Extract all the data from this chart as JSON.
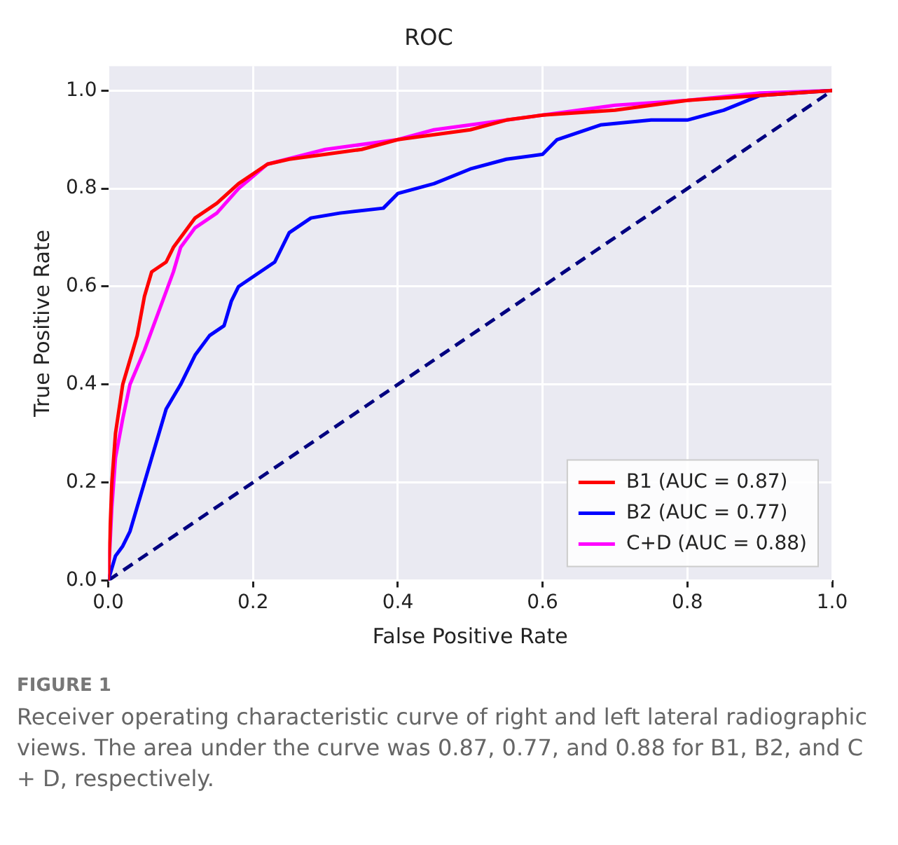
{
  "chart_data": {
    "type": "line",
    "title": "ROC",
    "xlabel": "False Positive Rate",
    "ylabel": "True Positive Rate",
    "annotations": [
      "FIGURE 1",
      "Receiver operating characteristic curve of right and left lateral radiographic views. The area under the curve was 0.87, 0.77, and 0.88 for B1, B2, and C + D, respectively."
    ],
    "xlim": [
      0,
      1
    ],
    "ylim": [
      0,
      1.05
    ],
    "xticks": [
      {
        "value": 0,
        "label": "0.0"
      },
      0.2,
      0.4,
      0.6,
      0.8,
      {
        "value": 1,
        "label": "1.0"
      }
    ],
    "yticks": [
      {
        "value": 0,
        "label": "0.0"
      },
      0.2,
      0.4,
      0.6,
      0.8,
      {
        "value": 1,
        "label": "1.0"
      }
    ],
    "grid": true,
    "legend": "bottom right",
    "marker": "none",
    "series": [
      {
        "name": "B1 (AUC = 0.87)",
        "color": "#ff0000",
        "x": [
          0,
          0.005,
          0.01,
          0.02,
          0.03,
          0.04,
          0.05,
          0.06,
          0.08,
          0.09,
          0.1,
          0.12,
          0.15,
          0.18,
          0.22,
          0.25,
          0.3,
          0.35,
          0.4,
          0.45,
          0.5,
          0.55,
          0.6,
          0.7,
          0.8,
          0.9,
          1
        ],
        "values": [
          0,
          0.2,
          0.3,
          0.4,
          0.45,
          0.5,
          0.58,
          0.63,
          0.65,
          0.68,
          0.7,
          0.74,
          0.77,
          0.81,
          0.85,
          0.86,
          0.87,
          0.88,
          0.9,
          0.91,
          0.92,
          0.94,
          0.95,
          0.96,
          0.98,
          0.99,
          1
        ]
      },
      {
        "name": "B2 (AUC = 0.77)",
        "color": "#0000ff",
        "x": [
          0,
          0.01,
          0.02,
          0.03,
          0.04,
          0.05,
          0.06,
          0.07,
          0.08,
          0.1,
          0.12,
          0.14,
          0.16,
          0.17,
          0.18,
          0.2,
          0.23,
          0.25,
          0.28,
          0.32,
          0.38,
          0.4,
          0.45,
          0.5,
          0.55,
          0.6,
          0.62,
          0.68,
          0.75,
          0.8,
          0.85,
          0.9,
          1
        ],
        "values": [
          0,
          0.05,
          0.07,
          0.1,
          0.15,
          0.2,
          0.25,
          0.3,
          0.35,
          0.4,
          0.46,
          0.5,
          0.52,
          0.57,
          0.6,
          0.62,
          0.65,
          0.71,
          0.74,
          0.75,
          0.76,
          0.79,
          0.81,
          0.84,
          0.86,
          0.87,
          0.9,
          0.93,
          0.94,
          0.94,
          0.96,
          0.99,
          1
        ]
      },
      {
        "name": "C+D (AUC = 0.88)",
        "color": "#ff00ff",
        "x": [
          0,
          0.005,
          0.01,
          0.02,
          0.03,
          0.05,
          0.07,
          0.09,
          0.1,
          0.12,
          0.15,
          0.18,
          0.22,
          0.3,
          0.4,
          0.45,
          0.5,
          0.6,
          0.7,
          0.8,
          0.9,
          1
        ],
        "values": [
          0,
          0.15,
          0.25,
          0.33,
          0.4,
          0.47,
          0.55,
          0.63,
          0.68,
          0.72,
          0.75,
          0.8,
          0.85,
          0.88,
          0.9,
          0.92,
          0.93,
          0.95,
          0.97,
          0.98,
          0.995,
          1
        ]
      },
      {
        "color": "#000080",
        "line_style": "dashed",
        "x": [
          0,
          1
        ],
        "values": [
          0,
          1
        ]
      }
    ]
  }
}
